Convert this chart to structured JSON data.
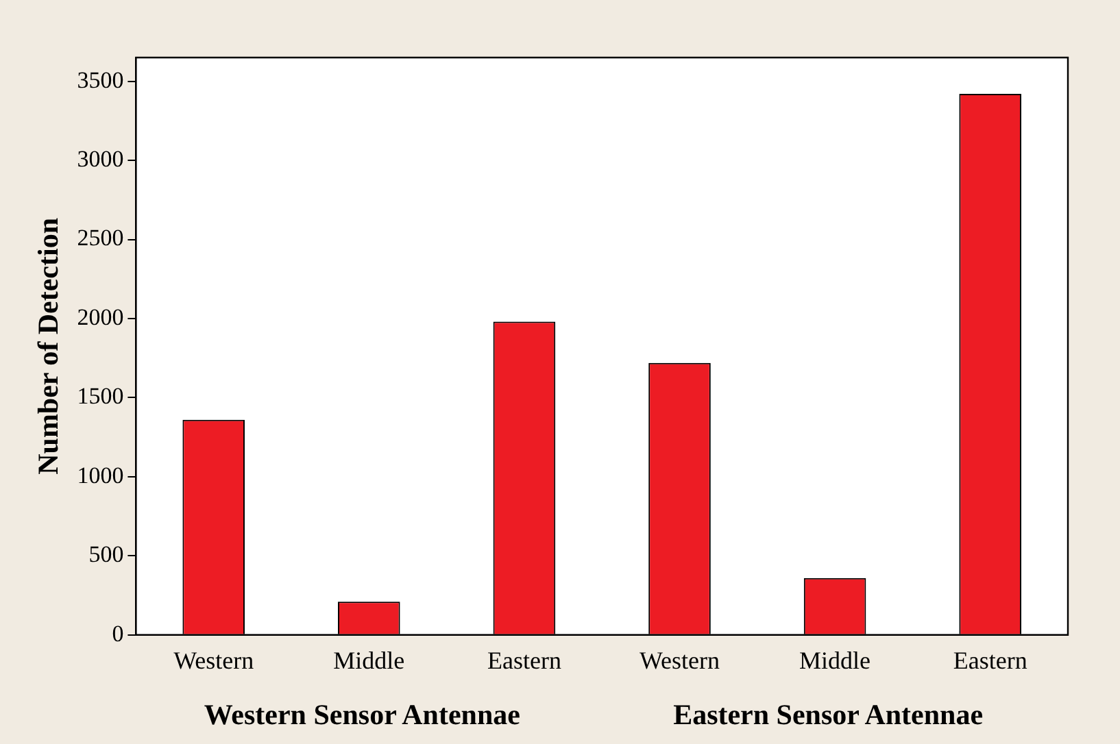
{
  "chart_data": {
    "type": "bar",
    "ylabel": "Number of Detection",
    "categories": [
      "Western",
      "Middle",
      "Eastern",
      "Western",
      "Middle",
      "Eastern"
    ],
    "values": [
      1360,
      210,
      1980,
      1720,
      360,
      3420
    ],
    "color": "#ed1c24",
    "ylim": [
      0,
      3650
    ],
    "yticks": [
      0,
      500,
      1000,
      1500,
      2000,
      2500,
      3000,
      3500
    ],
    "grid": false,
    "legend": false,
    "annotations": [
      "Western Sensor Antennae",
      "Eastern Sensor Antennae"
    ]
  }
}
